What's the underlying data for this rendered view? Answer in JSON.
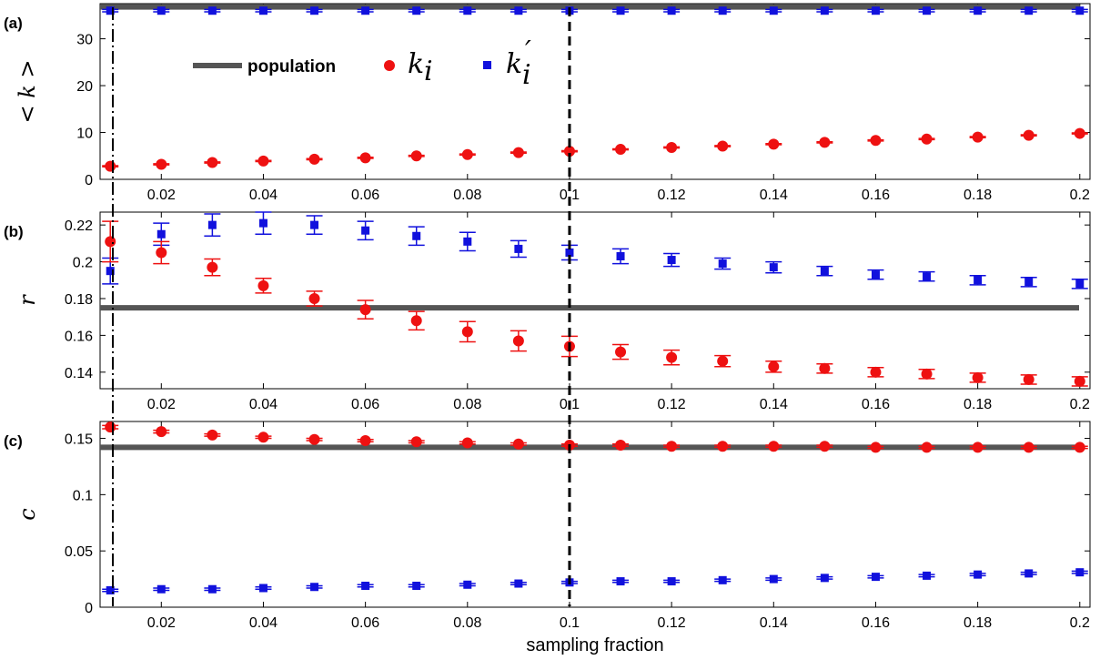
{
  "chart_data": [
    {
      "type": "scatter",
      "panel_label": "(a)",
      "ylabel": "< k >",
      "xlim": [
        0.008,
        0.202
      ],
      "ylim": [
        0,
        37.5
      ],
      "yticks": [
        0,
        10,
        20,
        30
      ],
      "xticks": [
        0.02,
        0.04,
        0.06,
        0.08,
        0.1,
        0.12,
        0.14,
        0.16,
        0.18,
        0.2
      ],
      "xtick_labels": [
        "0.02",
        "0.04",
        "0.06",
        "0.08",
        "0.1",
        "0.12",
        "0.14",
        "0.16",
        "0.18",
        "0.2"
      ],
      "population": 36.8,
      "x": [
        0.01,
        0.02,
        0.03,
        0.04,
        0.05,
        0.06,
        0.07,
        0.08,
        0.09,
        0.1,
        0.11,
        0.12,
        0.13,
        0.14,
        0.15,
        0.16,
        0.17,
        0.18,
        0.19,
        0.2
      ],
      "series": [
        {
          "name": "k_i",
          "color": "#ee1111",
          "marker": "circle",
          "values": [
            2.8,
            3.2,
            3.6,
            3.9,
            4.3,
            4.6,
            5.0,
            5.3,
            5.7,
            6.0,
            6.4,
            6.8,
            7.1,
            7.5,
            7.9,
            8.3,
            8.6,
            9.0,
            9.4,
            9.8
          ],
          "errors": [
            0.12,
            0.12,
            0.12,
            0.12,
            0.12,
            0.12,
            0.12,
            0.12,
            0.12,
            0.12,
            0.12,
            0.12,
            0.12,
            0.12,
            0.12,
            0.12,
            0.12,
            0.12,
            0.12,
            0.12
          ]
        },
        {
          "name": "k_i'",
          "color": "#1111dd",
          "marker": "square",
          "values": [
            36.0,
            36.0,
            36.0,
            36.0,
            36.0,
            36.0,
            36.0,
            36.0,
            36.0,
            36.0,
            36.0,
            36.0,
            36.0,
            36.0,
            36.0,
            36.0,
            36.0,
            36.0,
            36.0,
            36.0
          ],
          "errors": [
            0.25,
            0.25,
            0.25,
            0.25,
            0.25,
            0.25,
            0.25,
            0.25,
            0.25,
            0.25,
            0.25,
            0.25,
            0.25,
            0.25,
            0.25,
            0.25,
            0.25,
            0.25,
            0.25,
            0.25
          ]
        }
      ],
      "legend": {
        "population": "population",
        "k_i": "k",
        "k_i_sub": "i",
        "kp": "k",
        "kp_sub": "i",
        "kp_prime": "′"
      }
    },
    {
      "type": "scatter",
      "panel_label": "(b)",
      "ylabel": "r",
      "xlim": [
        0.008,
        0.202
      ],
      "ylim": [
        0.131,
        0.227
      ],
      "yticks": [
        0.14,
        0.16,
        0.18,
        0.2,
        0.22
      ],
      "ytick_labels": [
        "0.14",
        "0.16",
        "0.18",
        "0.2",
        "0.22"
      ],
      "xticks": [
        0.02,
        0.04,
        0.06,
        0.08,
        0.1,
        0.12,
        0.14,
        0.16,
        0.18,
        0.2
      ],
      "xtick_labels": [
        "0.02",
        "0.04",
        "0.06",
        "0.08",
        "0.1",
        "0.12",
        "0.14",
        "0.16",
        "0.18",
        "0.2"
      ],
      "population": 0.175,
      "x": [
        0.01,
        0.02,
        0.03,
        0.04,
        0.05,
        0.06,
        0.07,
        0.08,
        0.09,
        0.1,
        0.11,
        0.12,
        0.13,
        0.14,
        0.15,
        0.16,
        0.17,
        0.18,
        0.19,
        0.2
      ],
      "series": [
        {
          "name": "k_i",
          "color": "#ee1111",
          "marker": "circle",
          "values": [
            0.211,
            0.205,
            0.197,
            0.187,
            0.18,
            0.174,
            0.168,
            0.162,
            0.157,
            0.154,
            0.151,
            0.148,
            0.146,
            0.143,
            0.142,
            0.14,
            0.139,
            0.137,
            0.136,
            0.135
          ],
          "errors": [
            0.011,
            0.006,
            0.0045,
            0.004,
            0.004,
            0.005,
            0.005,
            0.0055,
            0.0055,
            0.0055,
            0.004,
            0.004,
            0.003,
            0.003,
            0.0025,
            0.0025,
            0.0025,
            0.0025,
            0.0025,
            0.0025
          ]
        },
        {
          "name": "k_i'",
          "color": "#1111dd",
          "marker": "square",
          "values": [
            0.195,
            0.215,
            0.22,
            0.221,
            0.22,
            0.217,
            0.214,
            0.211,
            0.207,
            0.205,
            0.203,
            0.201,
            0.199,
            0.197,
            0.195,
            0.193,
            0.192,
            0.19,
            0.189,
            0.188
          ],
          "errors": [
            0.007,
            0.006,
            0.006,
            0.006,
            0.005,
            0.005,
            0.005,
            0.005,
            0.0045,
            0.004,
            0.004,
            0.0035,
            0.003,
            0.003,
            0.0025,
            0.0025,
            0.0025,
            0.0025,
            0.0025,
            0.0025
          ]
        }
      ]
    },
    {
      "type": "scatter",
      "panel_label": "(c)",
      "ylabel": "c",
      "xlabel": "sampling fraction",
      "xlim": [
        0.008,
        0.202
      ],
      "ylim": [
        0,
        0.165
      ],
      "yticks": [
        0,
        0.05,
        0.1,
        0.15
      ],
      "ytick_labels": [
        "0",
        "0.05",
        "0.1",
        "0.15"
      ],
      "xticks": [
        0.02,
        0.04,
        0.06,
        0.08,
        0.1,
        0.12,
        0.14,
        0.16,
        0.18,
        0.2
      ],
      "xtick_labels": [
        "0.02",
        "0.04",
        "0.06",
        "0.08",
        "0.1",
        "0.12",
        "0.14",
        "0.16",
        "0.18",
        "0.2"
      ],
      "population": 0.142,
      "x": [
        0.01,
        0.02,
        0.03,
        0.04,
        0.05,
        0.06,
        0.07,
        0.08,
        0.09,
        0.1,
        0.11,
        0.12,
        0.13,
        0.14,
        0.15,
        0.16,
        0.17,
        0.18,
        0.19,
        0.2
      ],
      "series": [
        {
          "name": "k_i",
          "color": "#ee1111",
          "marker": "circle",
          "values": [
            0.16,
            0.156,
            0.153,
            0.151,
            0.149,
            0.148,
            0.147,
            0.146,
            0.145,
            0.144,
            0.144,
            0.143,
            0.143,
            0.143,
            0.143,
            0.142,
            0.142,
            0.142,
            0.142,
            0.142
          ],
          "errors": [
            0.0015,
            0.0012,
            0.001,
            0.001,
            0.001,
            0.001,
            0.001,
            0.001,
            0.001,
            0.001,
            0.001,
            0.001,
            0.001,
            0.001,
            0.001,
            0.001,
            0.001,
            0.001,
            0.001,
            0.001
          ]
        },
        {
          "name": "k_i'",
          "color": "#1111dd",
          "marker": "square",
          "values": [
            0.015,
            0.016,
            0.016,
            0.017,
            0.018,
            0.019,
            0.019,
            0.02,
            0.021,
            0.022,
            0.023,
            0.023,
            0.024,
            0.025,
            0.026,
            0.027,
            0.028,
            0.029,
            0.03,
            0.031
          ],
          "errors": [
            0.001,
            0.001,
            0.001,
            0.001,
            0.001,
            0.001,
            0.001,
            0.001,
            0.001,
            0.001,
            0.001,
            0.001,
            0.001,
            0.001,
            0.001,
            0.001,
            0.001,
            0.001,
            0.001,
            0.001
          ]
        }
      ]
    }
  ],
  "reference_lines": {
    "dash_dot_x": 0.0105,
    "dashed_x": 0.1
  },
  "colors": {
    "population": "#555555",
    "k_i": "#ee1111",
    "k_i_prime": "#1111dd"
  }
}
